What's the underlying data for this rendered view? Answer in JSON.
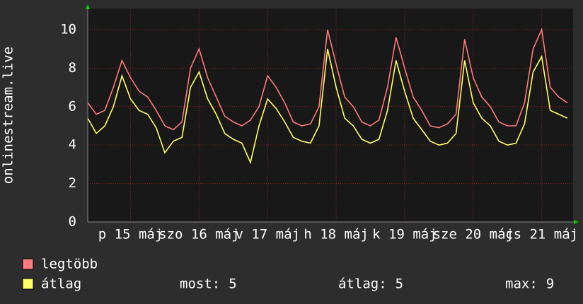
{
  "chart_data": {
    "type": "line",
    "ylabel": "onlinestream.live",
    "x": [
      0,
      3,
      6,
      9,
      12,
      15,
      18,
      21,
      24,
      27,
      30,
      33,
      36,
      39,
      42,
      45,
      48,
      51,
      54,
      57,
      60,
      63,
      66,
      69,
      72,
      75,
      78,
      81,
      84,
      87,
      90,
      93,
      96,
      99,
      102,
      105,
      108,
      111,
      114,
      117,
      120,
      123,
      126,
      129,
      132,
      135,
      138,
      141,
      144,
      147,
      150,
      153,
      156,
      159,
      162,
      165,
      168
    ],
    "xlim": [
      0,
      170
    ],
    "xticks": [
      {
        "value": 15,
        "label": "p 15 máj"
      },
      {
        "value": 39,
        "label": "szo 16 máj"
      },
      {
        "value": 63,
        "label": "v 17 máj"
      },
      {
        "value": 87,
        "label": "h 18 máj"
      },
      {
        "value": 111,
        "label": "k 19 máj"
      },
      {
        "value": 135,
        "label": "sze 20 máj"
      },
      {
        "value": 159,
        "label": "cs 21 máj"
      }
    ],
    "ylim": [
      0,
      11.1
    ],
    "yticks": [
      0,
      2,
      4,
      6,
      8,
      10
    ],
    "grid": true,
    "series": [
      {
        "name": "legtöbb",
        "color": "#ff7a7a",
        "values": [
          6.2,
          5.6,
          5.8,
          7.0,
          8.4,
          7.5,
          6.8,
          6.5,
          5.8,
          5.0,
          4.8,
          5.2,
          8.0,
          9.0,
          7.5,
          6.5,
          5.5,
          5.2,
          5.0,
          5.3,
          6.0,
          7.6,
          7.0,
          6.2,
          5.2,
          5.0,
          5.1,
          6.0,
          10.0,
          8.2,
          6.5,
          6.0,
          5.2,
          5.0,
          5.3,
          7.0,
          9.6,
          8.0,
          6.5,
          5.8,
          5.0,
          4.9,
          5.1,
          5.6,
          9.5,
          7.5,
          6.5,
          6.0,
          5.2,
          5.0,
          5.0,
          6.2,
          9.0,
          10.0,
          7.0,
          6.5,
          6.2
        ]
      },
      {
        "name": "átlag",
        "color": "#ffff66",
        "values": [
          5.4,
          4.6,
          5.0,
          6.0,
          7.6,
          6.4,
          5.8,
          5.6,
          4.9,
          3.6,
          4.2,
          4.4,
          7.0,
          7.8,
          6.4,
          5.6,
          4.6,
          4.3,
          4.1,
          3.1,
          5.0,
          6.4,
          5.9,
          5.2,
          4.4,
          4.2,
          4.1,
          5.0,
          9.0,
          7.0,
          5.4,
          5.0,
          4.3,
          4.1,
          4.3,
          5.8,
          8.4,
          6.8,
          5.4,
          4.8,
          4.2,
          4.0,
          4.1,
          4.6,
          8.4,
          6.2,
          5.4,
          5.0,
          4.2,
          4.0,
          4.1,
          5.1,
          7.8,
          8.6,
          5.8,
          5.6,
          5.4
        ]
      }
    ],
    "stats": [
      {
        "label": "most:",
        "value": 5
      },
      {
        "label": "átlag:",
        "value": 5
      },
      {
        "label": "max:",
        "value": 9
      }
    ]
  }
}
